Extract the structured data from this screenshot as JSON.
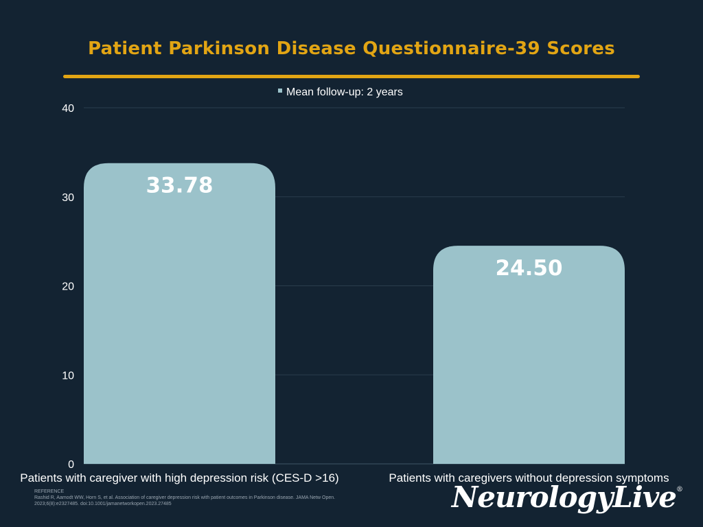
{
  "colors": {
    "background": "#132332",
    "accent": "#e2a514",
    "bar": "#9bc2ca",
    "text": "#ffffff"
  },
  "chart_data": {
    "type": "bar",
    "title": "Patient Parkinson Disease Questionnaire-39 Scores",
    "legend": {
      "label": "Mean follow-up: 2 years",
      "position": "top-center"
    },
    "categories": [
      "Patients with caregiver with high depression risk (CES-D >16)",
      "Patients with caregivers without depression symptoms"
    ],
    "values": [
      33.78,
      24.5
    ],
    "data_labels": [
      "33.78",
      "24.50"
    ],
    "ylim": [
      0,
      40
    ],
    "yticks": [
      0,
      10,
      20,
      30,
      40
    ],
    "grid": true
  },
  "reference": {
    "heading": "REFERENCE",
    "line1": "Rashid R, Aamodt WW, Horn S, et al. Association of caregiver depression risk with patient outcomes in Parkinson disease. JAMA Netw Open.",
    "line2": "2023;6(8):e2327485. doi:10.1001/jamanetworkopen.2023.27485"
  },
  "logo": {
    "text": "NeurologyLive",
    "mark": "®"
  }
}
